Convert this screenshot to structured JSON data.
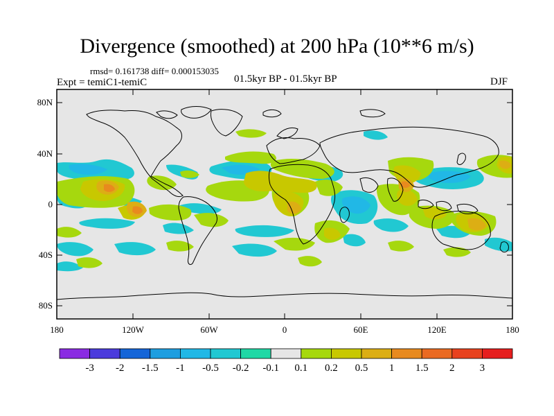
{
  "title": "Divergence (smoothed) at 200 hPa (10**6 m/s)",
  "stats": "rmsd= 0.161738 diff= 0.000153035",
  "expt": "Expt = temiC1-temiC",
  "period": "01.5kyr BP - 01.5kyr BP",
  "season": "DJF",
  "y_ticks": [
    "80N",
    "40N",
    "0",
    "40S",
    "80S"
  ],
  "x_ticks": [
    "180",
    "120W",
    "60W",
    "0",
    "60E",
    "120E",
    "180"
  ],
  "colorbar": {
    "labels": [
      "-3",
      "-2",
      "-1.5",
      "-1",
      "-0.5",
      "-0.2",
      "-0.1",
      "0.1",
      "0.2",
      "0.5",
      "1",
      "1.5",
      "2",
      "3"
    ],
    "colors": [
      "#8a2be2",
      "#4b3bdc",
      "#1565d8",
      "#1e9ee0",
      "#21b8e6",
      "#21c8d2",
      "#20d8a5",
      "#e6e6e6",
      "#a6d80e",
      "#c8c800",
      "#dcae14",
      "#e88a1e",
      "#ea6a22",
      "#e8421e",
      "#e61e1e"
    ]
  },
  "colors": {
    "background": "#e6e6e6",
    "coast": "#000000"
  }
}
